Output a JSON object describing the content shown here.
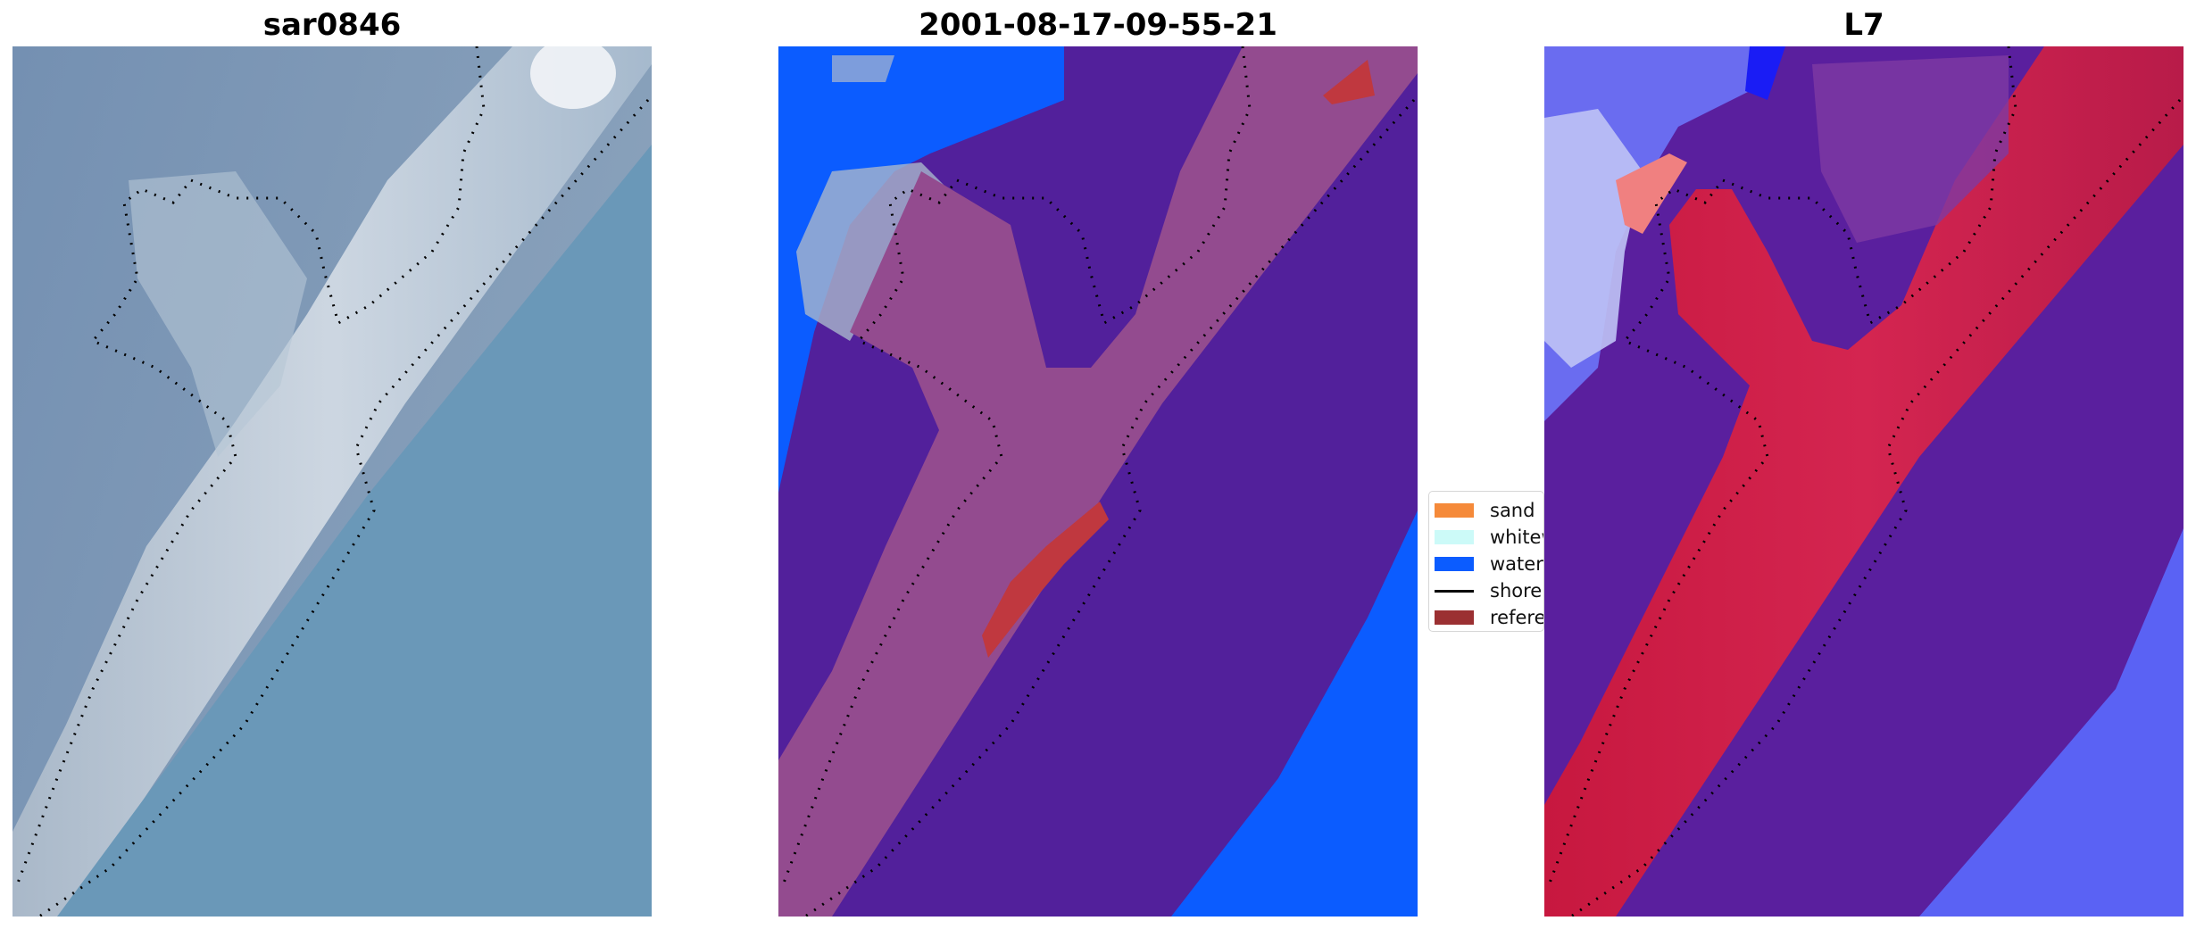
{
  "panels": [
    {
      "title": "sar0846"
    },
    {
      "title": "2001-08-17-09-55-21"
    },
    {
      "title": "L7"
    }
  ],
  "legend": {
    "items": [
      {
        "label": "sand",
        "color": "#f58a3a",
        "kind": "patch"
      },
      {
        "label": "whitew",
        "color": "#ccfaf8",
        "kind": "patch"
      },
      {
        "label": "water",
        "color": "#0b5cff",
        "kind": "patch"
      },
      {
        "label": "shorel",
        "color": "#000000",
        "kind": "line"
      },
      {
        "label": "referen",
        "color": "#9b3032",
        "kind": "patch"
      }
    ]
  },
  "colors": {
    "rgb_water": "#6a94b5",
    "rgb_land": "#7e98b4",
    "rgb_sand": "#cfd6de",
    "class_other": "#52209b",
    "class_sand_overlay": "#934b8f",
    "class_water": "#0b5cff",
    "class_reference": "#c0383f",
    "prob_high": "#c8103c",
    "prob_low": "#5a1f9e",
    "prob_water": "#5a62f4"
  }
}
